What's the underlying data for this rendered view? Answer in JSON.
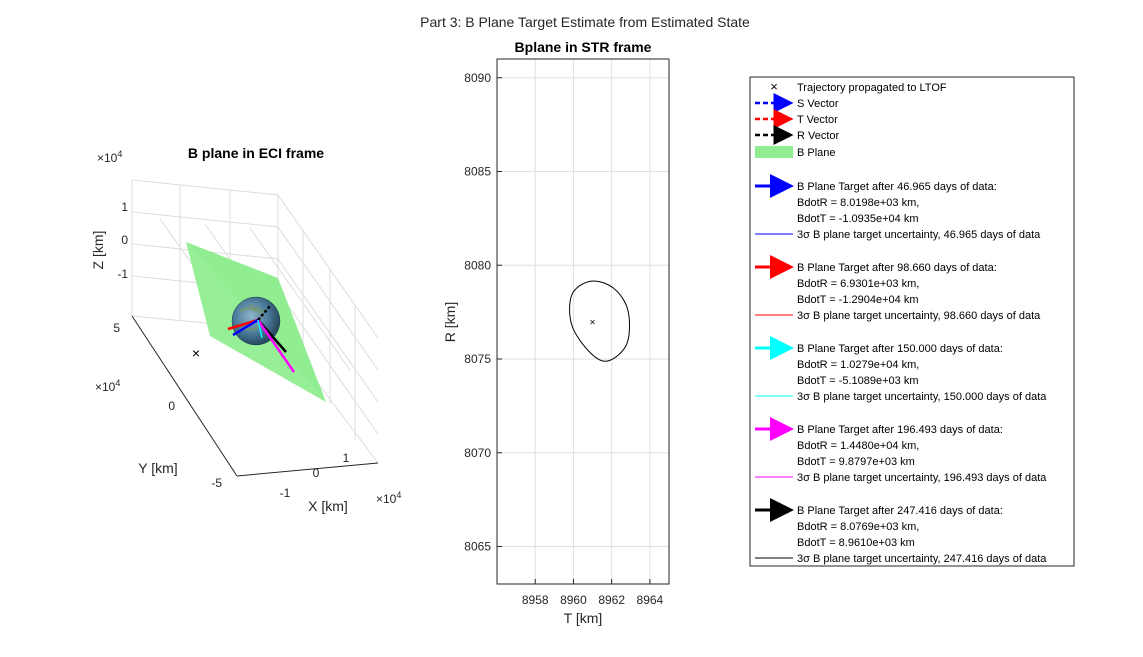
{
  "figure": {
    "suptitle": "Part 3: B Plane Target Estimate from Estimated State"
  },
  "chart_data": [
    {
      "type": "scatter",
      "title": "B plane in ECI frame",
      "xlabel": "X [km]",
      "ylabel": "Y [km]",
      "zlabel": "Z [km]",
      "x_ticks": [
        "-1",
        "0",
        "1"
      ],
      "y_ticks": [
        "5",
        "0",
        "-5"
      ],
      "z_ticks": [
        "1",
        "0",
        "-1"
      ],
      "x_exponent": "×10",
      "y_exponent": "×10",
      "z_exponent": "×10",
      "exponent_power": "4",
      "plane_color": "#90ee90",
      "earth_color": "#4a7a9a",
      "vector_colors": [
        "#0000ff",
        "#ff0000",
        "#000000",
        "#ff00ff"
      ]
    },
    {
      "type": "scatter",
      "title": "Bplane in STR frame",
      "xlabel": "T [km]",
      "ylabel": "R [km]",
      "xlim": [
        8956.0,
        8965.0
      ],
      "ylim": [
        8063.0,
        8091.0
      ],
      "x_ticks": [
        8958,
        8960,
        8962,
        8964
      ],
      "y_ticks": [
        8065,
        8070,
        8075,
        8080,
        8085,
        8090
      ],
      "grid": true,
      "point": {
        "x": 8961.0,
        "y": 8077.0,
        "marker": "x"
      },
      "ellipse": {
        "center": [
          8961.0,
          8077.0
        ],
        "points": [
          [
            8962.08,
            8078.79
          ],
          [
            8960.9,
            8079.15
          ],
          [
            8959.92,
            8078.43
          ],
          [
            8959.92,
            8076.79
          ],
          [
            8960.9,
            8075.32
          ],
          [
            8961.82,
            8074.9
          ],
          [
            8962.8,
            8075.83
          ],
          [
            8962.85,
            8077.6
          ],
          [
            8962.08,
            8078.79
          ]
        ],
        "color": "#000000"
      }
    }
  ],
  "legend": {
    "entries": [
      {
        "text": "Trajectory propagated to LTOF",
        "symbol": "x-marker",
        "color": "#000000"
      },
      {
        "text": "S Vector",
        "symbol": "dashed-arrow",
        "color": "#0000ff"
      },
      {
        "text": "T Vector",
        "symbol": "dashed-arrow",
        "color": "#ff0000"
      },
      {
        "text": "R Vector",
        "symbol": "dashed-arrow",
        "color": "#000000"
      },
      {
        "text": "B Plane",
        "symbol": "patch",
        "color": "#90ee90"
      },
      {
        "text": "B Plane Target after 46.965 days of data:",
        "symbol": "arrow",
        "color": "#0000ff"
      },
      {
        "text": "BdotR = 8.0198e+03 km,",
        "symbol": "none"
      },
      {
        "text": "BdotT = -1.0935e+04 km",
        "symbol": "none"
      },
      {
        "text": "3σ B plane target uncertainty, 46.965 days of data",
        "symbol": "line",
        "color": "#0000ff"
      },
      {
        "text": "B Plane Target after 98.660 days of data:",
        "symbol": "arrow",
        "color": "#ff0000"
      },
      {
        "text": "BdotR = 6.9301e+03 km,",
        "symbol": "none"
      },
      {
        "text": "BdotT = -1.2904e+04 km",
        "symbol": "none"
      },
      {
        "text": "3σ B plane target uncertainty, 98.660 days of data",
        "symbol": "line",
        "color": "#ff0000"
      },
      {
        "text": "B Plane Target after 150.000 days of data:",
        "symbol": "arrow",
        "color": "#00ffff"
      },
      {
        "text": "BdotR = 1.0279e+04 km,",
        "symbol": "none"
      },
      {
        "text": "BdotT = -5.1089e+03 km",
        "symbol": "none"
      },
      {
        "text": "3σ B plane target uncertainty, 150.000 days of data",
        "symbol": "line",
        "color": "#00ffff"
      },
      {
        "text": "B Plane Target after 196.493 days of data:",
        "symbol": "arrow",
        "color": "#ff00ff"
      },
      {
        "text": "BdotR = 1.4480e+04 km,",
        "symbol": "none"
      },
      {
        "text": "BdotT = 9.8797e+03 km",
        "symbol": "none"
      },
      {
        "text": "3σ B plane target uncertainty, 196.493 days of data",
        "symbol": "line",
        "color": "#ff00ff"
      },
      {
        "text": "B Plane Target after 247.416 days of data:",
        "symbol": "arrow",
        "color": "#000000"
      },
      {
        "text": "BdotR = 8.0769e+03 km,",
        "symbol": "none"
      },
      {
        "text": "BdotT = 8.9610e+03 km",
        "symbol": "none"
      },
      {
        "text": "3σ B plane target uncertainty, 247.416 days of data",
        "symbol": "line",
        "color": "#000000"
      }
    ]
  }
}
